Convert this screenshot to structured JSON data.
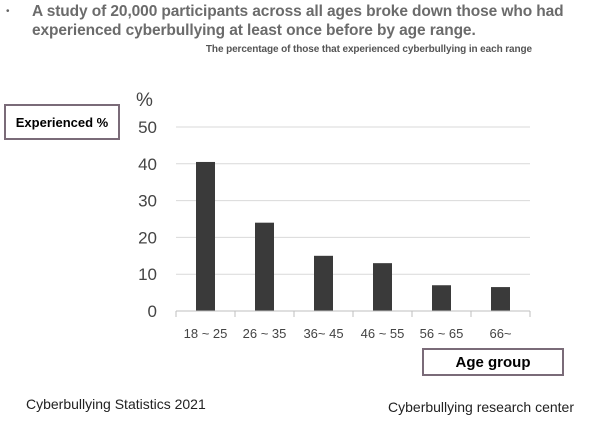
{
  "header": {
    "bullet": "•",
    "headline": "A study of 20,000 participants across all ages broke down those who had experienced cyberbullying at least once before by age range.",
    "subtitle": "The percentage of those that experienced cyberbullying in each range"
  },
  "labels": {
    "y_box": "Experienced %",
    "x_box": "Age group"
  },
  "footer": {
    "left": "Cyberbullying Statistics 2021",
    "right": "Cyberbullying research center"
  },
  "chart_data": {
    "type": "bar",
    "title": "The percentage of those that experienced cyberbullying in each range",
    "categories": [
      "18 ~ 25",
      "26 ~ 35",
      "36~ 45",
      "46 ~ 55",
      "56 ~ 65",
      "66~"
    ],
    "values": [
      40.5,
      24,
      15,
      13,
      7,
      6.5
    ],
    "xlabel": "Age group",
    "ylabel": "Experienced %",
    "y_unit": "%",
    "ylim": [
      0,
      50
    ],
    "yticks": [
      0,
      10,
      20,
      30,
      40,
      50
    ],
    "grid": true,
    "bar_color": "#3a3a3a",
    "grid_color": "#d9d9d9"
  }
}
